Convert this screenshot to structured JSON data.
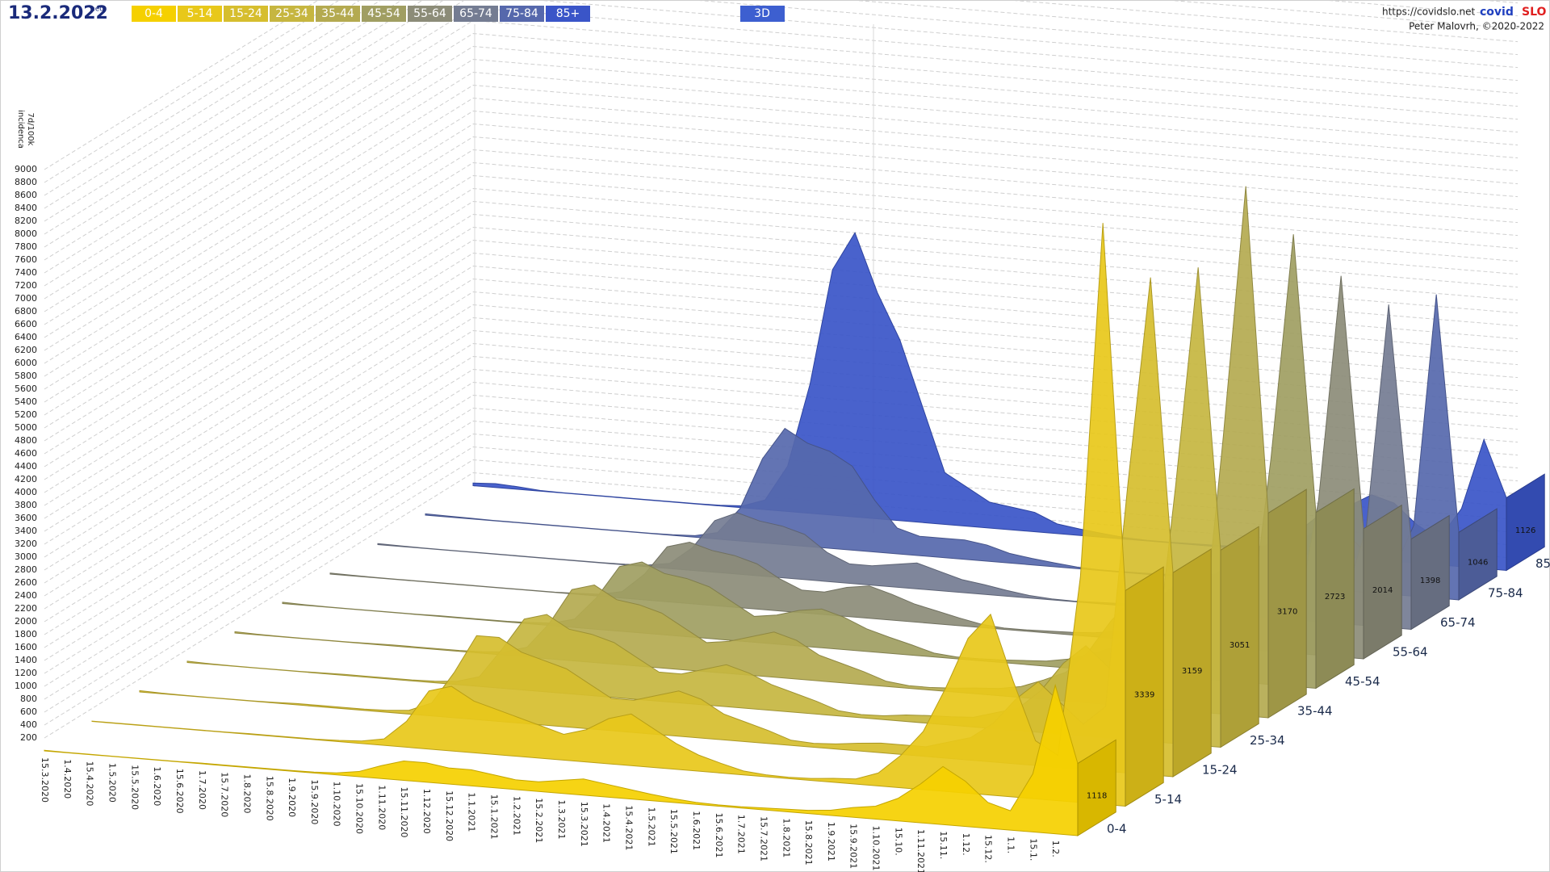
{
  "chart_data": {
    "type": "area",
    "title": "13.2.2022",
    "subtitle": "ned",
    "ylabel": [
      "7d/100k",
      "incidenca"
    ],
    "categories": [
      "15.3.2020",
      "1.4.2020",
      "15.4.2020",
      "1.5.2020",
      "15.5.2020",
      "1.6.2020",
      "15.6.2020",
      "1.7.2020",
      "15.7.2020",
      "1.8.2020",
      "15.8.2020",
      "1.9.2020",
      "15.9.2020",
      "1.10.2020",
      "15.10.2020",
      "1.11.2020",
      "15.11.2020",
      "1.12.2020",
      "15.12.2020",
      "1.1.2021",
      "15.1.2021",
      "1.2.2021",
      "15.2.2021",
      "1.3.2021",
      "15.3.2021",
      "1.4.2021",
      "15.4.2021",
      "1.5.2021",
      "15.5.2021",
      "1.6.2021",
      "15.6.2021",
      "1.7.2021",
      "15.7.2021",
      "1.8.2021",
      "15.8.2021",
      "1.9.2021",
      "15.9.2021",
      "1.10.2021",
      "15.10.",
      "1.11.2021",
      "15.11.",
      "1.12.",
      "15.12.",
      "1.1.",
      "15.1.",
      "1.2.",
      null
    ],
    "series": [
      {
        "name": "0-4",
        "color": "#f5d000",
        "values": [
          10,
          5,
          5,
          5,
          5,
          5,
          5,
          10,
          10,
          10,
          10,
          10,
          15,
          30,
          80,
          200,
          300,
          300,
          250,
          250,
          200,
          150,
          150,
          200,
          250,
          200,
          150,
          100,
          60,
          30,
          20,
          20,
          30,
          40,
          50,
          80,
          150,
          200,
          350,
          600,
          900,
          700,
          400,
          300,
          900,
          2300,
          1118
        ]
      },
      {
        "name": "5-14",
        "color": "#e8c81a",
        "values": [
          5,
          5,
          5,
          5,
          5,
          5,
          5,
          10,
          10,
          10,
          10,
          20,
          40,
          100,
          400,
          900,
          1000,
          800,
          700,
          600,
          500,
          400,
          500,
          700,
          800,
          600,
          400,
          250,
          150,
          60,
          30,
          20,
          30,
          60,
          80,
          200,
          500,
          900,
          1600,
          2400,
          2800,
          1800,
          900,
          700,
          3500,
          9000,
          3339
        ]
      },
      {
        "name": "15-24",
        "color": "#d6be2e",
        "values": [
          20,
          10,
          5,
          5,
          5,
          5,
          10,
          20,
          20,
          20,
          20,
          30,
          60,
          200,
          700,
          1300,
          1300,
          1100,
          1000,
          900,
          700,
          500,
          500,
          600,
          700,
          600,
          400,
          300,
          200,
          80,
          60,
          80,
          120,
          150,
          150,
          150,
          250,
          350,
          600,
          1000,
          1300,
          1000,
          700,
          1000,
          4500,
          7700,
          3159
        ]
      },
      {
        "name": "25-34",
        "color": "#c6b640",
        "values": [
          20,
          10,
          5,
          5,
          5,
          5,
          10,
          15,
          15,
          15,
          15,
          25,
          50,
          150,
          600,
          1100,
          1200,
          1000,
          950,
          850,
          650,
          450,
          450,
          550,
          650,
          550,
          400,
          300,
          200,
          80,
          50,
          60,
          100,
          120,
          130,
          150,
          250,
          350,
          650,
          1100,
          1400,
          1100,
          750,
          900,
          4000,
          7400,
          3051
        ]
      },
      {
        "name": "35-44",
        "color": "#b4aa50",
        "values": [
          20,
          10,
          5,
          5,
          5,
          5,
          10,
          15,
          15,
          15,
          15,
          25,
          50,
          150,
          550,
          1100,
          1200,
          1000,
          950,
          850,
          650,
          450,
          500,
          600,
          700,
          600,
          400,
          300,
          200,
          80,
          40,
          40,
          60,
          90,
          110,
          170,
          300,
          450,
          800,
          1300,
          1700,
          1300,
          850,
          800,
          4300,
          8200,
          3170
        ]
      },
      {
        "name": "45-54",
        "color": "#a09e62",
        "values": [
          20,
          10,
          5,
          5,
          5,
          5,
          5,
          10,
          10,
          10,
          10,
          20,
          40,
          130,
          500,
          1000,
          1100,
          950,
          900,
          800,
          600,
          400,
          450,
          550,
          600,
          500,
          350,
          250,
          160,
          60,
          30,
          30,
          40,
          60,
          80,
          140,
          250,
          380,
          700,
          1200,
          1500,
          1150,
          750,
          650,
          3500,
          7000,
          2723
        ]
      },
      {
        "name": "55-64",
        "color": "#8c8c78",
        "values": [
          15,
          10,
          5,
          5,
          5,
          5,
          5,
          5,
          5,
          5,
          5,
          15,
          30,
          100,
          400,
          850,
          950,
          850,
          800,
          700,
          500,
          350,
          350,
          450,
          500,
          400,
          280,
          200,
          120,
          50,
          20,
          20,
          30,
          40,
          60,
          110,
          200,
          320,
          600,
          1000,
          1300,
          1000,
          650,
          450,
          2400,
          5900,
          2014
        ]
      },
      {
        "name": "65-74",
        "color": "#747c92",
        "values": [
          15,
          10,
          5,
          5,
          5,
          5,
          5,
          5,
          5,
          5,
          5,
          10,
          25,
          80,
          350,
          800,
          950,
          850,
          800,
          700,
          450,
          300,
          300,
          350,
          400,
          300,
          200,
          150,
          90,
          40,
          15,
          10,
          20,
          30,
          40,
          90,
          170,
          280,
          550,
          950,
          1250,
          950,
          600,
          350,
          1500,
          5000,
          1398
        ]
      },
      {
        "name": "75-84",
        "color": "#5668ac",
        "values": [
          20,
          15,
          10,
          5,
          5,
          5,
          5,
          5,
          5,
          5,
          5,
          10,
          25,
          100,
          500,
          1300,
          1800,
          1600,
          1500,
          1300,
          800,
          400,
          300,
          300,
          300,
          250,
          150,
          100,
          60,
          25,
          10,
          10,
          15,
          25,
          35,
          80,
          150,
          250,
          500,
          900,
          1200,
          900,
          550,
          300,
          1100,
          4700,
          1046
        ]
      },
      {
        "name": "85+",
        "color": "#3a55c8",
        "values": [
          40,
          60,
          40,
          10,
          5,
          5,
          5,
          5,
          5,
          5,
          5,
          10,
          30,
          150,
          700,
          2000,
          3800,
          4400,
          3500,
          2800,
          1800,
          800,
          600,
          400,
          350,
          300,
          150,
          100,
          60,
          25,
          10,
          10,
          15,
          20,
          30,
          60,
          120,
          250,
          500,
          800,
          1000,
          900,
          600,
          400,
          900,
          2000,
          1126
        ]
      }
    ],
    "ylim": [
      0,
      9000
    ],
    "yticks": [
      200,
      400,
      600,
      800,
      1000,
      1200,
      1400,
      1600,
      1800,
      2000,
      2200,
      2400,
      2600,
      2800,
      3000,
      3200,
      3400,
      3600,
      3800,
      4000,
      4200,
      4400,
      4600,
      4800,
      5000,
      5200,
      5400,
      5600,
      5800,
      6000,
      6200,
      6400,
      6600,
      6800,
      7000,
      7200,
      7400,
      7600,
      7800,
      8000,
      8200,
      8400,
      8600,
      8800,
      9000
    ],
    "grid": true
  },
  "header": {
    "mode_button": "3D",
    "url": "https://covidslo.net",
    "brand": [
      "covid",
      "SLO"
    ],
    "author": "Peter Malovrh, ©2020-2022"
  }
}
